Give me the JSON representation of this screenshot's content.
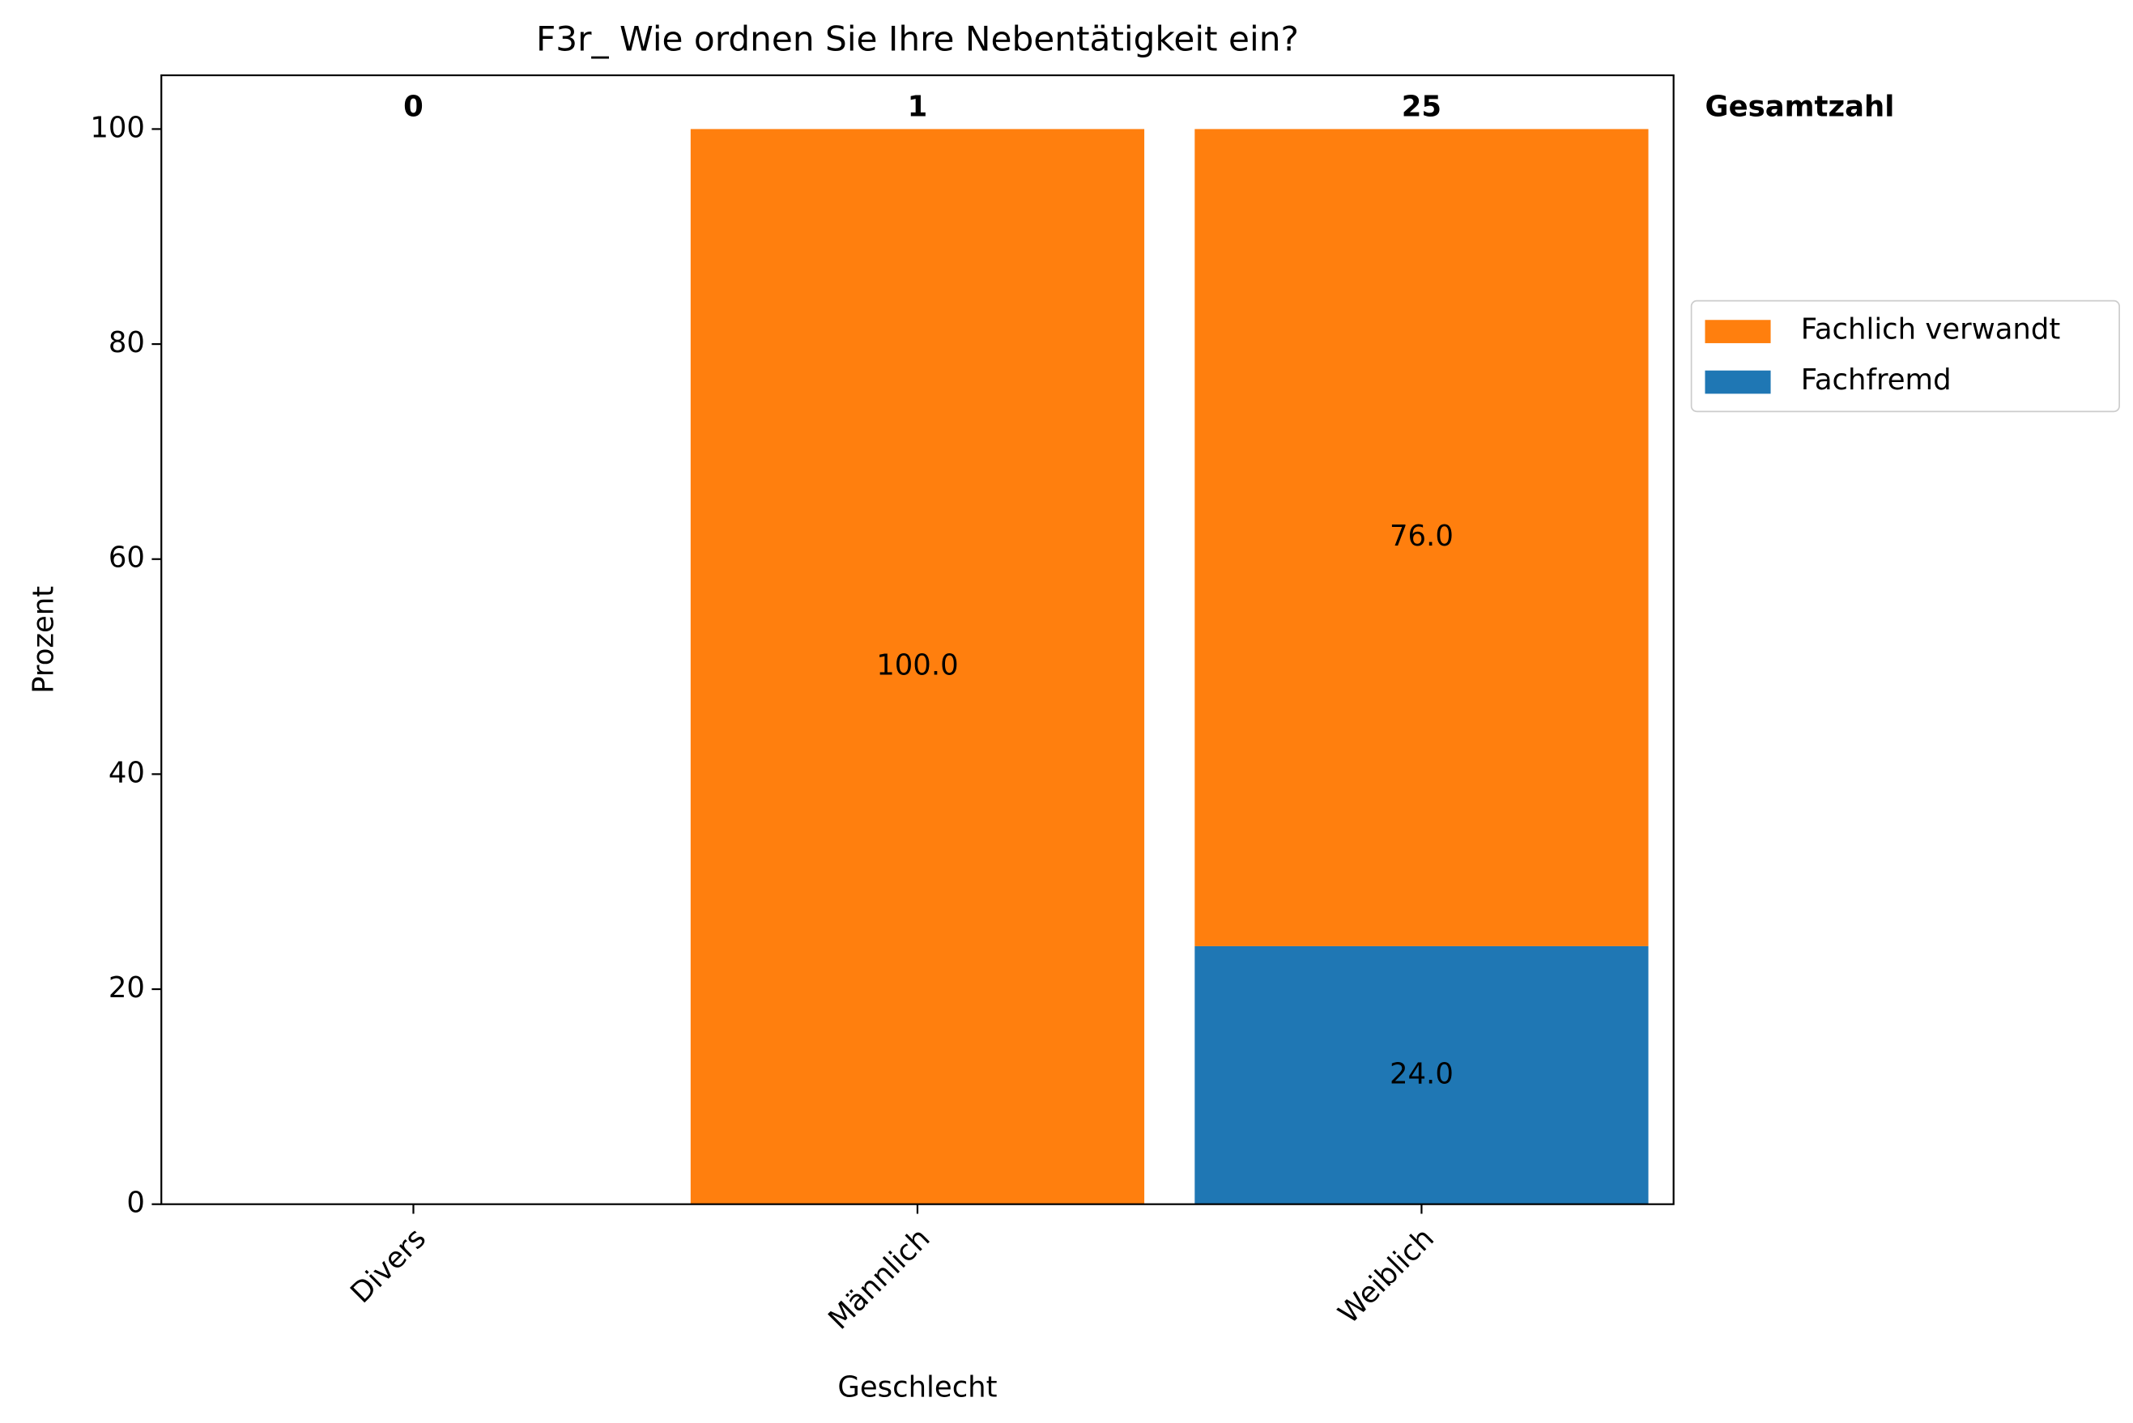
{
  "chart_data": {
    "type": "stacked_bar",
    "title": "F3r_ Wie ordnen Sie Ihre Nebentätigkeit ein?",
    "x_label": "Geschlecht",
    "y_label": "Prozent",
    "categories": [
      "Divers",
      "Männlich",
      "Weiblich"
    ],
    "series": [
      {
        "name": "Fachfremd",
        "color": "#1f77b4",
        "values": [
          null,
          0,
          24
        ],
        "value_labels": [
          null,
          null,
          "24.0"
        ]
      },
      {
        "name": "Fachlich verwandt",
        "color": "#ff7f0e",
        "values": [
          null,
          100,
          76
        ],
        "value_labels": [
          null,
          "100.0",
          "76.0"
        ]
      }
    ],
    "totals": {
      "label": "Gesamtzahl",
      "values": [
        0,
        1,
        25
      ]
    },
    "ylim": [
      0,
      105
    ],
    "yticks": [
      0,
      20,
      40,
      60,
      80,
      100
    ],
    "grid": false,
    "legend": "right"
  }
}
